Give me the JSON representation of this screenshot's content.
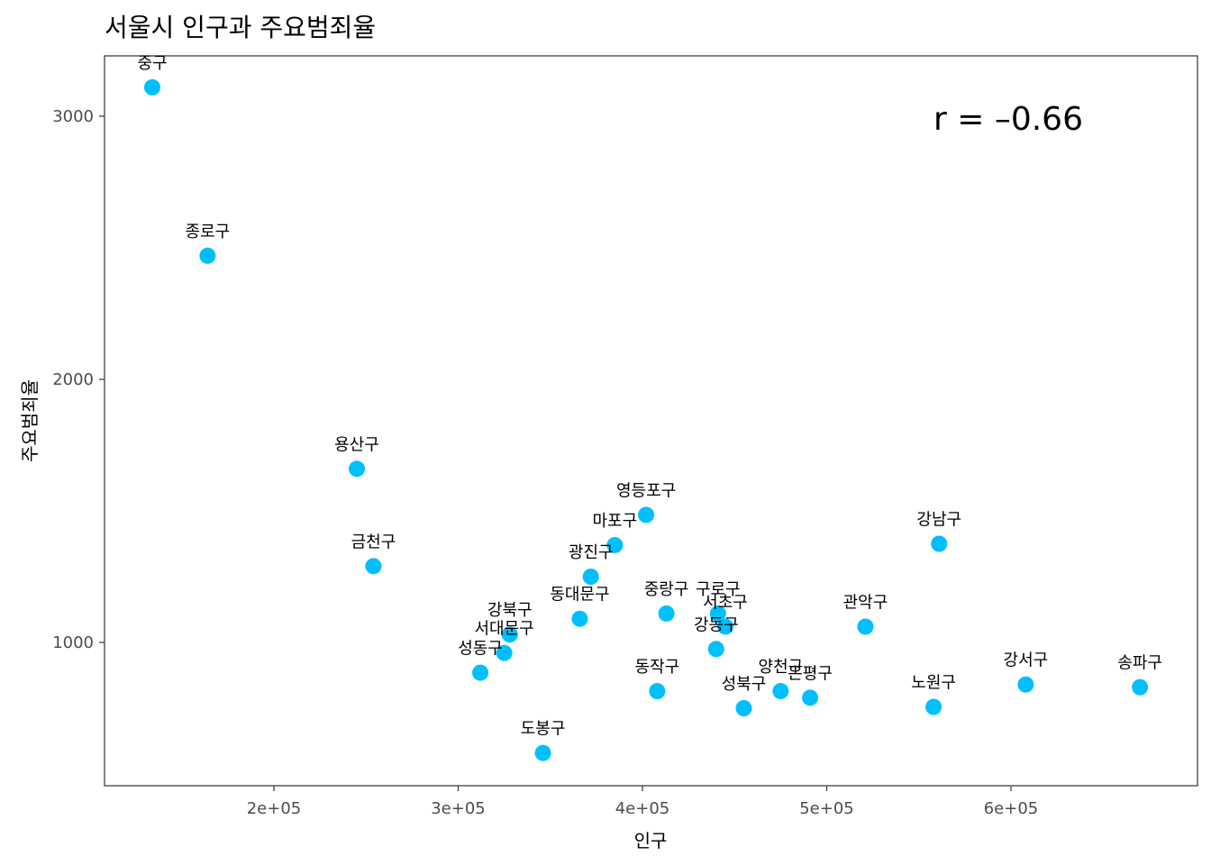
{
  "chart_data": {
    "type": "scatter",
    "title": "서울시 인구과 주요범죄율",
    "xlabel": "인구",
    "ylabel": "주요범죄율",
    "xlim": [
      110000,
      680000
    ],
    "ylim": [
      470000,
      3230000
    ],
    "x_ticks": [
      200000,
      300000,
      400000,
      500000,
      600000
    ],
    "x_tick_labels": [
      "2e+05",
      "3e+05",
      "4e+05",
      "5e+05",
      "6e+05"
    ],
    "y_ticks": [
      1000,
      2000,
      3000
    ],
    "y_tick_labels": [
      "1000",
      "2000",
      "3000"
    ],
    "annotation": "r = –0.66",
    "point_color": "#00bfff",
    "grid": false,
    "points": [
      {
        "name": "중구",
        "x": 134000,
        "y": 3110
      },
      {
        "name": "종로구",
        "x": 164000,
        "y": 2470
      },
      {
        "name": "용산구",
        "x": 245000,
        "y": 1660
      },
      {
        "name": "금천구",
        "x": 254000,
        "y": 1290
      },
      {
        "name": "성동구",
        "x": 312000,
        "y": 885
      },
      {
        "name": "서대문구",
        "x": 325000,
        "y": 960
      },
      {
        "name": "강북구",
        "x": 328000,
        "y": 1030
      },
      {
        "name": "도봉구",
        "x": 346000,
        "y": 580
      },
      {
        "name": "동대문구",
        "x": 366000,
        "y": 1090
      },
      {
        "name": "광진구",
        "x": 372000,
        "y": 1250
      },
      {
        "name": "마포구",
        "x": 385000,
        "y": 1370
      },
      {
        "name": "영등포구",
        "x": 402000,
        "y": 1485
      },
      {
        "name": "동작구",
        "x": 408000,
        "y": 815
      },
      {
        "name": "중랑구",
        "x": 413000,
        "y": 1110
      },
      {
        "name": "강동구",
        "x": 440000,
        "y": 975
      },
      {
        "name": "구로구",
        "x": 441000,
        "y": 1110
      },
      {
        "name": "서초구",
        "x": 445000,
        "y": 1060
      },
      {
        "name": "성북구",
        "x": 455000,
        "y": 750
      },
      {
        "name": "양천구",
        "x": 475000,
        "y": 815
      },
      {
        "name": "은평구",
        "x": 491000,
        "y": 790
      },
      {
        "name": "관악구",
        "x": 521000,
        "y": 1060
      },
      {
        "name": "노원구",
        "x": 558000,
        "y": 755
      },
      {
        "name": "강남구",
        "x": 561000,
        "y": 1375
      },
      {
        "name": "강서구",
        "x": 608000,
        "y": 840
      },
      {
        "name": "송파구",
        "x": 670000,
        "y": 830
      }
    ]
  }
}
